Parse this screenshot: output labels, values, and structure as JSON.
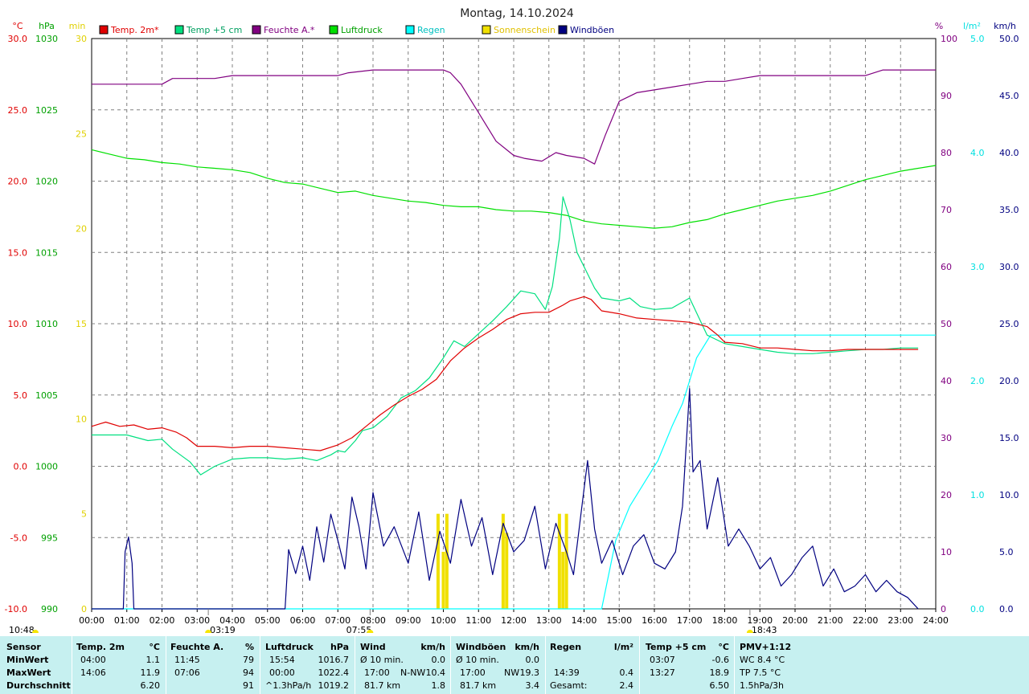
{
  "title": "Montag, 14.10.2024",
  "colors": {
    "temp2m": "#e00000",
    "temp5cm": "#00e080",
    "feuchte": "#800080",
    "luftdruck": "#00e000",
    "regen": "#00ffff",
    "sonne": "#f0e000",
    "windboeen": "#000080"
  },
  "legend": [
    {
      "label": "Temp. 2m*",
      "color": "#e00000",
      "text_color": "#e00000"
    },
    {
      "label": "Temp +5 cm",
      "color": "#00e080",
      "text_color": "#00a060"
    },
    {
      "label": "Feuchte A.*",
      "color": "#800080",
      "text_color": "#800080"
    },
    {
      "label": "Luftdruck",
      "color": "#00e000",
      "text_color": "#00a000"
    },
    {
      "label": "Regen",
      "color": "#00ffff",
      "text_color": "#00c0c0"
    },
    {
      "label": "Sonnenschein",
      "color": "#f0e000",
      "text_color": "#e0c000"
    },
    {
      "label": "Windböen",
      "color": "#000080",
      "text_color": "#000080"
    }
  ],
  "chart_data": {
    "type": "line",
    "x_unit": "hour",
    "xlim": [
      0,
      24
    ],
    "x_ticks": [
      "00:00",
      "01:00",
      "02:00",
      "03:00",
      "04:00",
      "05:00",
      "06:00",
      "07:00",
      "08:00",
      "09:00",
      "10:00",
      "11:00",
      "12:00",
      "13:00",
      "14:00",
      "15:00",
      "16:00",
      "17:00",
      "18:00",
      "19:00",
      "20:00",
      "21:00",
      "22:00",
      "23:00",
      "24:00"
    ],
    "axes": {
      "temp": {
        "label": "°C",
        "range": [
          -10,
          30
        ],
        "ticks": [
          "-10.0",
          "-5.0",
          "0.0",
          "5.0",
          "10.0",
          "15.0",
          "20.0",
          "25.0",
          "30.0"
        ]
      },
      "hpa": {
        "label": "hPa",
        "range": [
          990,
          1030
        ],
        "ticks": [
          "990",
          "995",
          "1000",
          "1005",
          "1010",
          "1015",
          "1020",
          "1025",
          "1030"
        ]
      },
      "min": {
        "label": "min",
        "range": [
          0,
          30
        ],
        "ticks": [
          "0",
          "5",
          "10",
          "15",
          "20",
          "25",
          "30"
        ]
      },
      "pct": {
        "label": "%",
        "range": [
          0,
          100
        ],
        "ticks": [
          "0",
          "10",
          "20",
          "30",
          "40",
          "50",
          "60",
          "70",
          "80",
          "90",
          "100"
        ]
      },
      "rain": {
        "label": "l/m²",
        "range": [
          0,
          5
        ],
        "ticks": [
          "0.0",
          "1.0",
          "2.0",
          "3.0",
          "4.0",
          "5.0"
        ]
      },
      "wind": {
        "label": "km/h",
        "range": [
          0,
          50
        ],
        "ticks": [
          "0.0",
          "5.0",
          "10.0",
          "15.0",
          "20.0",
          "25.0",
          "30.0",
          "35.0",
          "40.0",
          "45.0",
          "50.0"
        ]
      }
    },
    "series": [
      {
        "name": "Temp. 2m*",
        "axis": "temp",
        "x": [
          0,
          0.4,
          0.8,
          1.2,
          1.6,
          2,
          2.4,
          2.7,
          3,
          3.5,
          4,
          4.5,
          5,
          5.5,
          6,
          6.5,
          7,
          7.4,
          7.8,
          8.2,
          8.6,
          9,
          9.4,
          9.8,
          10.2,
          10.6,
          11,
          11.4,
          11.8,
          12.2,
          12.6,
          13,
          13.4,
          13.6,
          14,
          14.2,
          14.5,
          15,
          15.5,
          16,
          16.5,
          17,
          17.5,
          17.8,
          18,
          18.5,
          19,
          19.5,
          20,
          20.5,
          21,
          21.5,
          22,
          22.5,
          23,
          23.5
        ],
        "y": [
          2.8,
          3.1,
          2.8,
          2.9,
          2.6,
          2.7,
          2.4,
          2.0,
          1.4,
          1.4,
          1.3,
          1.4,
          1.4,
          1.3,
          1.2,
          1.1,
          1.5,
          2.0,
          2.8,
          3.6,
          4.3,
          4.9,
          5.4,
          6.1,
          7.4,
          8.3,
          9.0,
          9.6,
          10.3,
          10.7,
          10.8,
          10.8,
          11.3,
          11.6,
          11.9,
          11.7,
          10.9,
          10.7,
          10.4,
          10.3,
          10.2,
          10.1,
          9.8,
          9.2,
          8.7,
          8.6,
          8.3,
          8.3,
          8.2,
          8.1,
          8.1,
          8.2,
          8.2,
          8.2,
          8.2,
          8.2
        ]
      },
      {
        "name": "Temp +5 cm",
        "axis": "temp",
        "x": [
          0,
          0.5,
          1,
          1.3,
          1.6,
          2,
          2.3,
          2.8,
          3.1,
          3.5,
          4,
          4.5,
          5,
          5.5,
          6,
          6.4,
          6.8,
          7,
          7.2,
          7.5,
          7.7,
          8,
          8.4,
          8.8,
          9.2,
          9.6,
          10,
          10.3,
          10.6,
          11,
          11.4,
          11.8,
          12.2,
          12.6,
          12.9,
          13.1,
          13.3,
          13.4,
          13.6,
          13.8,
          14,
          14.3,
          14.5,
          15,
          15.3,
          15.6,
          16,
          16.5,
          17,
          17.5,
          18,
          18.5,
          19,
          19.5,
          20,
          20.5,
          21,
          21.5,
          22,
          22.5,
          23,
          23.5
        ],
        "y": [
          2.2,
          2.2,
          2.2,
          2.0,
          1.8,
          1.9,
          1.2,
          0.3,
          -0.6,
          0.0,
          0.5,
          0.6,
          0.6,
          0.5,
          0.6,
          0.4,
          0.8,
          1.1,
          1.0,
          1.8,
          2.5,
          2.7,
          3.5,
          4.8,
          5.3,
          6.2,
          7.6,
          8.8,
          8.4,
          9.3,
          10.2,
          11.2,
          12.3,
          12.1,
          11.0,
          12.6,
          16.0,
          18.9,
          17.3,
          15.0,
          14.0,
          12.5,
          11.8,
          11.6,
          11.8,
          11.2,
          11.0,
          11.1,
          11.8,
          9.2,
          8.6,
          8.4,
          8.2,
          8.0,
          7.9,
          7.9,
          8.0,
          8.1,
          8.2,
          8.2,
          8.3,
          8.3
        ]
      },
      {
        "name": "Feuchte A.*",
        "axis": "pct",
        "x": [
          0,
          1,
          2,
          2.3,
          3,
          3.5,
          4,
          5,
          6,
          7,
          7.3,
          8,
          8.5,
          9,
          10,
          10.2,
          10.5,
          11,
          11.5,
          12,
          12.3,
          12.8,
          13.2,
          13.5,
          14,
          14.3,
          14.6,
          15,
          15.5,
          16,
          16.5,
          17,
          17.5,
          18,
          18.5,
          19,
          20,
          21,
          22,
          22.5,
          23,
          24
        ],
        "y": [
          92,
          92,
          92,
          93,
          93,
          93,
          93.5,
          93.5,
          93.5,
          93.5,
          94,
          94.5,
          94.5,
          94.5,
          94.5,
          94,
          92,
          87,
          82,
          79.5,
          79,
          78.5,
          80,
          79.5,
          79,
          78,
          83,
          89,
          90.5,
          91,
          91.5,
          92,
          92.5,
          92.5,
          93,
          93.5,
          93.5,
          93.5,
          93.5,
          94.5,
          94.5,
          94.5
        ]
      },
      {
        "name": "Luftdruck",
        "axis": "hpa",
        "x": [
          0,
          0.5,
          1,
          1.5,
          2,
          2.5,
          3,
          3.5,
          4,
          4.5,
          5,
          5.5,
          6,
          6.5,
          7,
          7.5,
          8,
          8.5,
          9,
          9.5,
          10,
          10.5,
          11,
          11.5,
          12,
          12.5,
          13,
          13.5,
          14,
          14.5,
          15,
          15.5,
          16,
          16.5,
          17,
          17.5,
          18,
          18.5,
          19,
          19.5,
          20,
          20.5,
          21,
          21.5,
          22,
          22.5,
          23,
          23.5,
          24
        ],
        "y": [
          1022.2,
          1021.9,
          1021.6,
          1021.5,
          1021.3,
          1021.2,
          1021.0,
          1020.9,
          1020.8,
          1020.6,
          1020.2,
          1019.9,
          1019.8,
          1019.5,
          1019.2,
          1019.3,
          1019.0,
          1018.8,
          1018.6,
          1018.5,
          1018.3,
          1018.2,
          1018.2,
          1018.0,
          1017.9,
          1017.9,
          1017.8,
          1017.6,
          1017.2,
          1017.0,
          1016.9,
          1016.8,
          1016.7,
          1016.8,
          1017.1,
          1017.3,
          1017.7,
          1018.0,
          1018.3,
          1018.6,
          1018.8,
          1019.0,
          1019.3,
          1019.7,
          1020.1,
          1020.4,
          1020.7,
          1020.9,
          1021.1
        ]
      },
      {
        "name": "Regen",
        "axis": "rain",
        "x": [
          0,
          14.5,
          14.9,
          15.3,
          15.7,
          16.1,
          16.5,
          16.8,
          17.0,
          17.2,
          17.6,
          24
        ],
        "y": [
          0,
          0,
          0.6,
          0.9,
          1.1,
          1.3,
          1.6,
          1.8,
          2.0,
          2.2,
          2.4,
          2.4
        ]
      },
      {
        "name": "Windböen",
        "axis": "wind",
        "x": [
          0,
          0.9,
          0.95,
          1.05,
          1.15,
          1.2,
          1.25,
          5.5,
          5.6,
          5.8,
          6.0,
          6.2,
          6.4,
          6.6,
          6.8,
          7.0,
          7.2,
          7.4,
          7.6,
          7.8,
          8.0,
          8.3,
          8.6,
          9.0,
          9.3,
          9.6,
          9.9,
          10.2,
          10.5,
          10.8,
          11.1,
          11.4,
          11.7,
          12.0,
          12.3,
          12.6,
          12.9,
          13.2,
          13.5,
          13.7,
          13.9,
          14.1,
          14.3,
          14.5,
          14.8,
          15.1,
          15.4,
          15.7,
          16.0,
          16.3,
          16.6,
          16.8,
          17.0,
          17.1,
          17.3,
          17.5,
          17.8,
          18.1,
          18.4,
          18.7,
          19.0,
          19.3,
          19.6,
          19.9,
          20.2,
          20.5,
          20.8,
          21.1,
          21.4,
          21.7,
          22.0,
          22.3,
          22.6,
          22.9,
          23.2,
          23.5
        ],
        "y": [
          0,
          0,
          5.0,
          6.3,
          4.0,
          0,
          0,
          0,
          5.2,
          3.1,
          5.5,
          2.5,
          7.2,
          4.1,
          8.3,
          6.0,
          3.5,
          9.8,
          7.2,
          3.5,
          10.2,
          5.5,
          7.2,
          4.0,
          8.5,
          2.5,
          6.8,
          4.0,
          9.6,
          5.5,
          8.0,
          3.0,
          7.5,
          5.0,
          6.0,
          9.0,
          3.5,
          7.5,
          5.0,
          3.0,
          8.0,
          13.0,
          7.0,
          4.0,
          6.0,
          3.0,
          5.5,
          6.5,
          4.0,
          3.5,
          5.0,
          9.0,
          19.3,
          12.0,
          13.0,
          7.0,
          11.5,
          5.5,
          7.0,
          5.5,
          3.5,
          4.5,
          2.0,
          3.0,
          4.5,
          5.5,
          2.0,
          3.5,
          1.5,
          2.0,
          3.0,
          1.5,
          2.5,
          1.5,
          1.0,
          0
        ]
      },
      {
        "name": "Sonnenschein",
        "axis": "min",
        "x": [
          9.85,
          10.0,
          10.1,
          11.7,
          11.8,
          13.3,
          13.4,
          13.5
        ],
        "y": [
          5,
          3,
          5,
          5,
          4,
          5,
          3,
          5
        ]
      }
    ],
    "markers": [
      {
        "label": "03:19",
        "x": 3.317,
        "symbol": "moon"
      },
      {
        "label": "07:55",
        "x": 7.917,
        "symbol": "sunrise"
      },
      {
        "label": "18:43",
        "x": 18.717,
        "symbol": "sunset"
      },
      {
        "label": "10:48",
        "x": 10.8,
        "symbol": "sun"
      }
    ],
    "grid": true
  },
  "stats": {
    "row_labels": {
      "title": "Sensor",
      "min": "MinWert",
      "max": "MaxWert",
      "avg": "Durchschnitt"
    },
    "temp2m": {
      "title": "Temp. 2m",
      "unit": "°C",
      "min_time": "04:00",
      "min": "1.1",
      "max_time": "14:06",
      "max": "11.9",
      "avg": "6.20"
    },
    "feuchte": {
      "title": "Feuchte A.",
      "unit": "%",
      "min_time": "11:45",
      "min": "79",
      "max_time": "07:06",
      "max": "94",
      "avg": "91"
    },
    "luftdruck": {
      "title": "Luftdruck",
      "unit": "hPa",
      "min_time": "15:54",
      "min": "1016.7",
      "max_time": "00:00",
      "max": "1022.4",
      "avg_label": "^1.3hPa/h",
      "avg": "1019.2"
    },
    "wind": {
      "title": "Wind",
      "unit": "km/h",
      "min_label": "Ø 10 min.",
      "min": "0.0",
      "max_time": "17:00",
      "max_dir": "N-NW",
      "max": "10.4",
      "avg_label": "81.7 km",
      "avg": "1.8"
    },
    "boeen": {
      "title": "Windböen",
      "unit": "km/h",
      "min_label": "Ø 10 min.",
      "min": "0.0",
      "max_time": "17:00",
      "max_dir": "NW",
      "max": "19.3",
      "avg_label": "81.7 km",
      "avg": "3.4"
    },
    "regen": {
      "title": "Regen",
      "unit": "l/m²",
      "max_time": "14:39",
      "max": "0.4",
      "avg_label": "Gesamt:",
      "avg": "2.4"
    },
    "temp5cm": {
      "title": "Temp +5 cm",
      "unit": "°C",
      "min_time": "03:07",
      "min": "-0.6",
      "max_time": "13:27",
      "max": "18.9",
      "avg": "6.50"
    },
    "pmv": {
      "title": "PMV+1:12",
      "line1": "WC 8.4 °C",
      "line2": "TP 7.5 °C",
      "line3": "1.5hPa/3h"
    }
  }
}
